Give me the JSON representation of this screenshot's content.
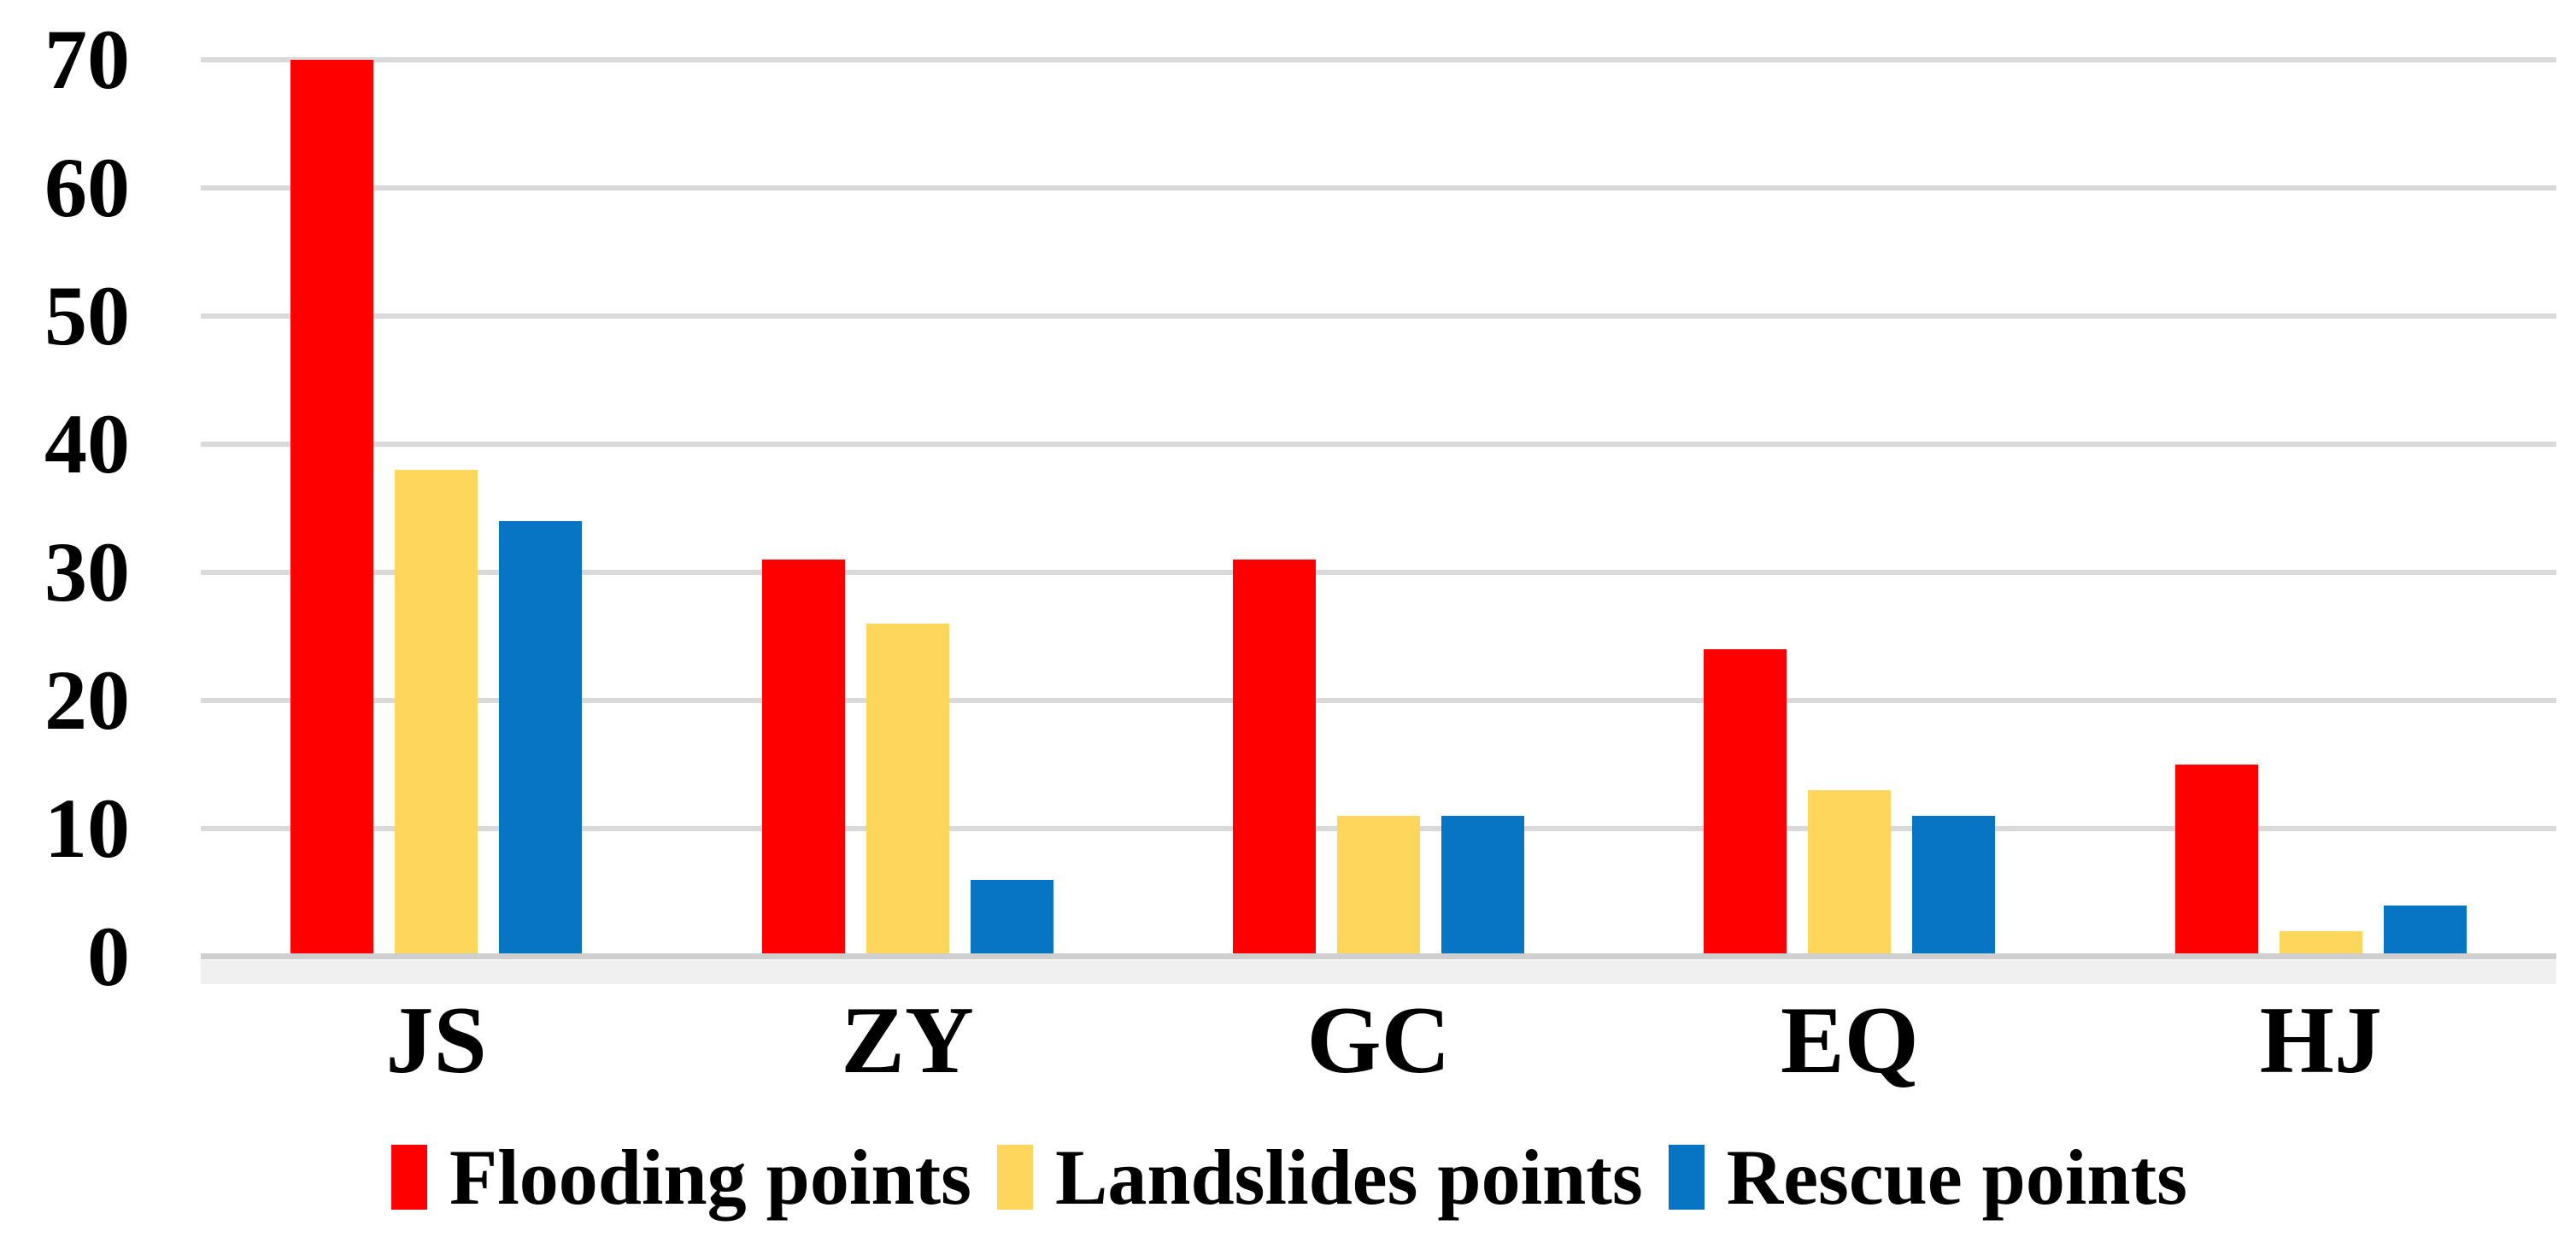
{
  "chart_data": {
    "type": "bar",
    "title": "",
    "xlabel": "",
    "ylabel": "",
    "categories": [
      "JS",
      "ZY",
      "GC",
      "EQ",
      "HJ"
    ],
    "series": [
      {
        "name": "Flooding points",
        "color": "#FE0000",
        "values": [
          70,
          31,
          31,
          24,
          15
        ]
      },
      {
        "name": "Landslides points",
        "color": "#FFD65C",
        "values": [
          38,
          26,
          11,
          13,
          2
        ]
      },
      {
        "name": "Rescue points",
        "color": "#0874C4",
        "values": [
          34,
          6,
          11,
          11,
          4
        ]
      }
    ],
    "ylim": [
      0,
      70
    ],
    "yticks": [
      0,
      10,
      20,
      30,
      40,
      50,
      60,
      70
    ],
    "grid": true,
    "gridline_color": "#D9D9D9",
    "axis_line_color": "#CFCFCF",
    "legend_position": "bottom",
    "background_color": "#FFFFFF",
    "text_color": "#000000"
  }
}
